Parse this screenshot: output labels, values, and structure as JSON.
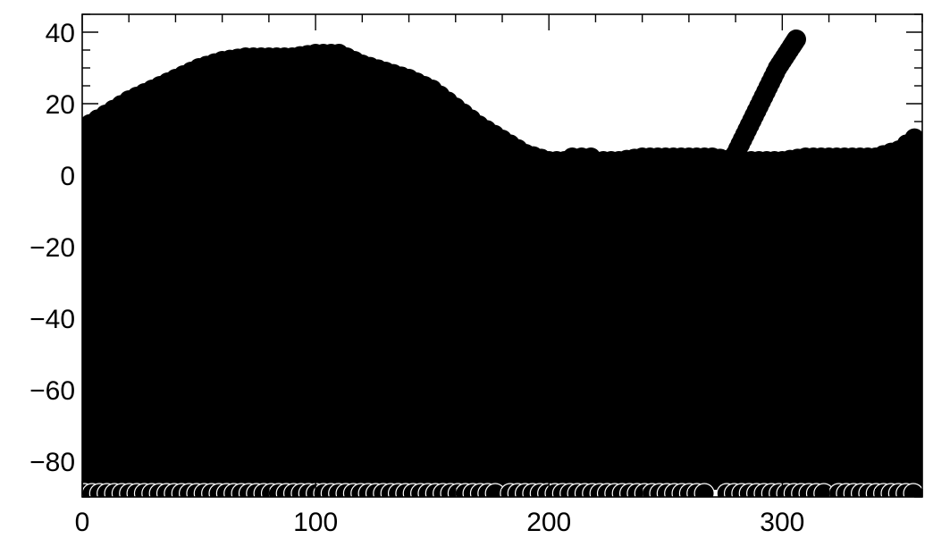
{
  "chart_data": {
    "type": "scatter",
    "title": "",
    "xlabel": "",
    "ylabel": "",
    "xlim": [
      0,
      360
    ],
    "ylim": [
      -90,
      45
    ],
    "x_ticks": [
      {
        "value": 0,
        "label": "0"
      },
      {
        "value": 100,
        "label": "100"
      },
      {
        "value": 200,
        "label": "200"
      },
      {
        "value": 300,
        "label": "300"
      }
    ],
    "y_ticks": [
      {
        "value": 40,
        "label": "40"
      },
      {
        "value": 20,
        "label": "20"
      },
      {
        "value": 0,
        "label": "0"
      },
      {
        "value": -20,
        "label": "−20"
      },
      {
        "value": -40,
        "label": "−40"
      },
      {
        "value": -60,
        "label": "−60"
      },
      {
        "value": -80,
        "label": "−80"
      }
    ],
    "x_minor_step": 20,
    "y_minor_step": 5,
    "grid": false,
    "legend": "none",
    "marker": "filled-circle",
    "marker_color": "#000000",
    "upper_boundary": {
      "x": [
        0,
        10,
        20,
        30,
        40,
        50,
        60,
        70,
        80,
        90,
        100,
        110,
        120,
        130,
        140,
        150,
        160,
        170,
        180,
        190,
        200,
        210,
        220,
        230,
        240,
        250,
        260,
        270,
        280,
        290,
        300,
        310,
        320,
        330,
        340,
        350,
        360
      ],
      "y": [
        13,
        17,
        21,
        24,
        27,
        30,
        32,
        33,
        33,
        33,
        34,
        34,
        31,
        29,
        27,
        24,
        19,
        14,
        10,
        6,
        4,
        4,
        4,
        4,
        5,
        5,
        5,
        5,
        4,
        4,
        4,
        5,
        5,
        5,
        5,
        7,
        12
      ]
    },
    "lower_limit": -88,
    "streak": {
      "x": [
        280,
        283,
        286,
        289,
        292,
        295,
        298,
        301,
        304,
        306
      ],
      "y": [
        6,
        10,
        14,
        18,
        22,
        26,
        30,
        33,
        36,
        38
      ]
    },
    "bump": {
      "x": [
        210,
        214,
        218
      ],
      "y": [
        5,
        5,
        5
      ]
    },
    "bottom_gaps": [
      [
        88,
        90
      ],
      [
        139,
        141
      ],
      [
        178,
        182
      ],
      [
        268,
        273
      ],
      [
        320,
        322
      ]
    ]
  }
}
